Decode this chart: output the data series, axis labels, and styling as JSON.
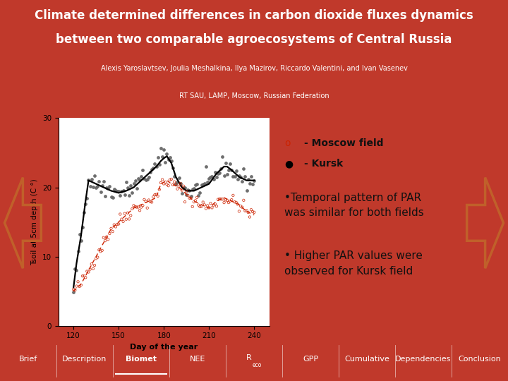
{
  "title_line1": "Climate determined differences in carbon dioxide fluxes dynamics",
  "title_line2": "between two comparable agroecosystems of Central Russia",
  "authors": "Alexis Yaroslavtsev, Joulia Meshalkina, Ilya Mazirov, Riccardo Valentini, and Ivan Vasenev",
  "affiliation": "RT SAU, LAMP, Moscow, Russian Federation",
  "header_bg": "#c0392b",
  "affil_bg": "#b5451b",
  "footer_bg": "#b5451b",
  "body_bg": "#f0ece4",
  "plot_bg": "#ffffff",
  "ylabel": "Tsoil at 5cm depth (C °)",
  "xlabel": "Day of the year",
  "xlim": [
    110,
    250
  ],
  "ylim": [
    0,
    30
  ],
  "xticks": [
    120,
    150,
    180,
    210,
    240
  ],
  "yticks": [
    0,
    10,
    20,
    30
  ],
  "nav_items": [
    "Brief",
    "Description",
    "Biomet",
    "NEE",
    "Reco",
    "GPP",
    "Cumulative",
    "Dependencies",
    "Conclusion"
  ],
  "nav_active_idx": 2,
  "moscow_color": "#cc2200",
  "kursk_color": "#444444",
  "arrow_color": "#c0602a",
  "text_color": "#111111",
  "legend_font": 10,
  "bullet_font": 11
}
